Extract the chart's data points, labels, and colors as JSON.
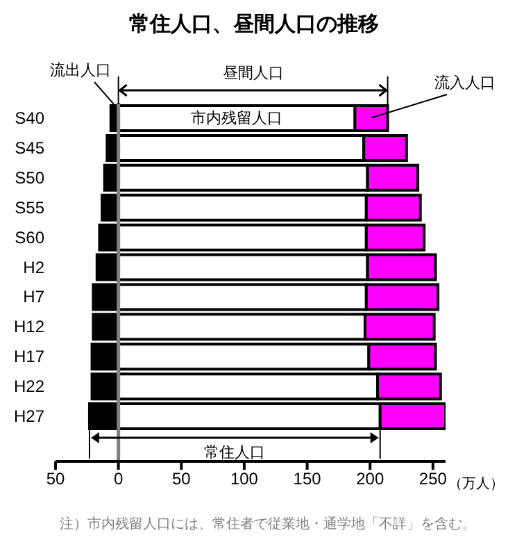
{
  "chart_data": {
    "type": "bar",
    "orientation": "horizontal",
    "stacked": true,
    "title": "常住人口、昼間人口の推移",
    "xlabel": "（万人）",
    "categories": [
      "S40",
      "S45",
      "S50",
      "S55",
      "S60",
      "H2",
      "H7",
      "H12",
      "H17",
      "H22",
      "H27"
    ],
    "series": [
      {
        "name": "流出人口",
        "color": "#000000",
        "values": [
          -6,
          -9,
          -11,
          -13,
          -15,
          -17,
          -20,
          -20,
          -21,
          -21,
          -23
        ]
      },
      {
        "name": "市内残留人口",
        "color": "#ffffff",
        "values": [
          188,
          195,
          198,
          197,
          197,
          198,
          197,
          196,
          199,
          206,
          208
        ]
      },
      {
        "name": "流入人口",
        "color": "#ff00ff",
        "values": [
          26,
          34,
          40,
          43,
          46,
          54,
          57,
          55,
          53,
          50,
          52
        ]
      }
    ],
    "xlim": [
      -50,
      260
    ],
    "xticks": [
      {
        "value": -50,
        "label": "50"
      },
      0,
      50,
      100,
      150,
      200,
      250
    ],
    "ref_lines": [
      {
        "axis": "x",
        "value": 0,
        "color": "#808080"
      }
    ],
    "annotations": [
      "昼間人口",
      "常住人口",
      "注）市内残留人口には、常住者で従業地・通学地「不詳」を含む。"
    ],
    "legend": false,
    "grid": false
  }
}
